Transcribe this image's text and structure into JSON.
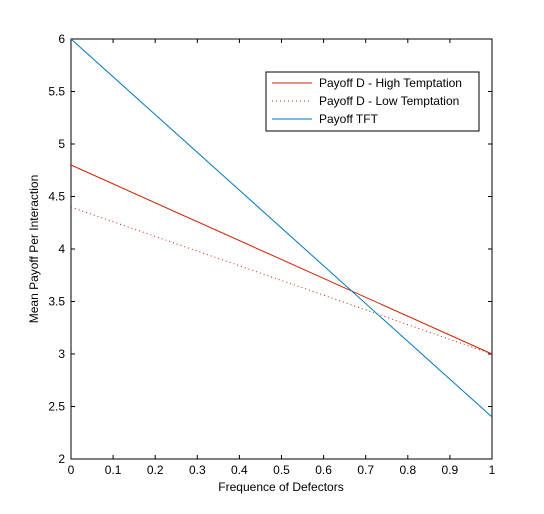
{
  "chart_data": {
    "type": "line",
    "xlabel": "Frequence of Defectors",
    "ylabel": "Mean Payoff Per Interaction",
    "xlim": [
      0,
      1
    ],
    "ylim": [
      2,
      6
    ],
    "xticks": [
      "0",
      "0.1",
      "0.2",
      "0.3",
      "0.4",
      "0.5",
      "0.6",
      "0.7",
      "0.8",
      "0.9",
      "1"
    ],
    "yticks": [
      "2",
      "2.5",
      "3",
      "3.5",
      "4",
      "4.5",
      "5",
      "5.5",
      "6"
    ],
    "grid": false,
    "legend_position": "top-right",
    "series": [
      {
        "name": "Payoff D - High Temptation",
        "x": [
          0,
          1
        ],
        "y": [
          4.8,
          3.0
        ],
        "color": "#cc2200",
        "style": "solid"
      },
      {
        "name": "Payoff D - Low Temptation",
        "x": [
          0,
          1
        ],
        "y": [
          4.4,
          3.0
        ],
        "color": "#cc2200",
        "style": "dotted"
      },
      {
        "name": "Payoff TFT",
        "x": [
          0,
          1
        ],
        "y": [
          6.0,
          2.4
        ],
        "color": "#0077bb",
        "style": "solid"
      }
    ]
  }
}
